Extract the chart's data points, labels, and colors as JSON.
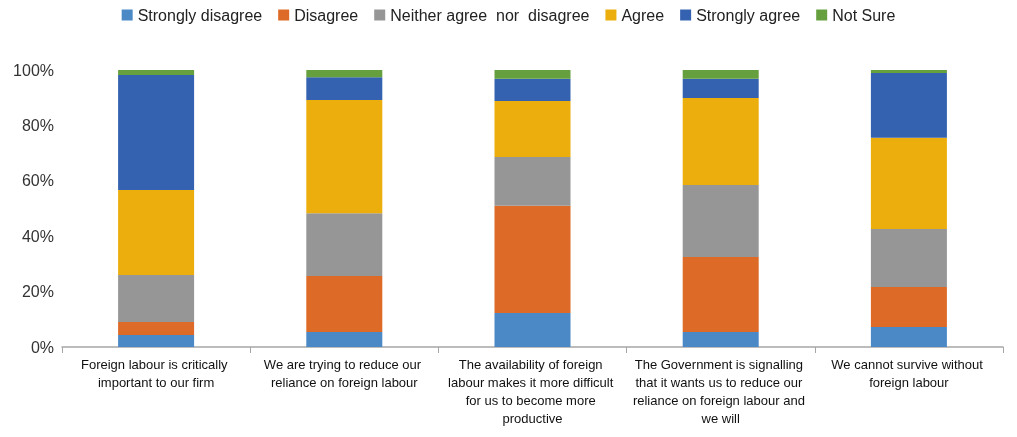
{
  "chart_data": {
    "type": "bar",
    "stacked": true,
    "legend": "top",
    "grid": false,
    "categories": [
      "Foreign labour is critically important to our firm",
      "We are trying to reduce our reliance on foreign labour",
      "The availability of foreign labour makes it more difficult for us to become more productive",
      "The Government is signalling that it wants us to reduce our reliance on foreign labour and we will",
      "We cannot survive without foreign labour"
    ],
    "ylim": [
      0,
      100
    ],
    "yticks": [
      {
        "value": 0,
        "label": "0%"
      },
      {
        "value": 20,
        "label": "20%"
      },
      {
        "value": 40,
        "label": "40%"
      },
      {
        "value": 60,
        "label": "60%"
      },
      {
        "value": 80,
        "label": "80%"
      },
      {
        "value": 100,
        "label": "100%"
      }
    ],
    "series": [
      {
        "name": "Strongly disagree",
        "color": "#4a88c6",
        "values": [
          4.3,
          5.4,
          12.3,
          5.4,
          7.2
        ]
      },
      {
        "name": "Disagree",
        "color": "#dd6a26",
        "values": [
          4.7,
          20.2,
          38.7,
          27.1,
          14.5
        ]
      },
      {
        "name": "Neither agree  nor  disagree",
        "color": "#969696",
        "values": [
          17.0,
          22.7,
          17.6,
          26.0,
          20.9
        ]
      },
      {
        "name": "Agree",
        "color": "#ecae0c",
        "values": [
          30.7,
          40.9,
          20.2,
          31.4,
          32.9
        ]
      },
      {
        "name": "Strongly agree",
        "color": "#3462b0",
        "values": [
          41.5,
          8.2,
          8.0,
          6.9,
          23.4
        ]
      },
      {
        "name": "Not Sure",
        "color": "#66a03e",
        "values": [
          1.8,
          2.6,
          3.2,
          3.2,
          1.1
        ]
      }
    ]
  }
}
